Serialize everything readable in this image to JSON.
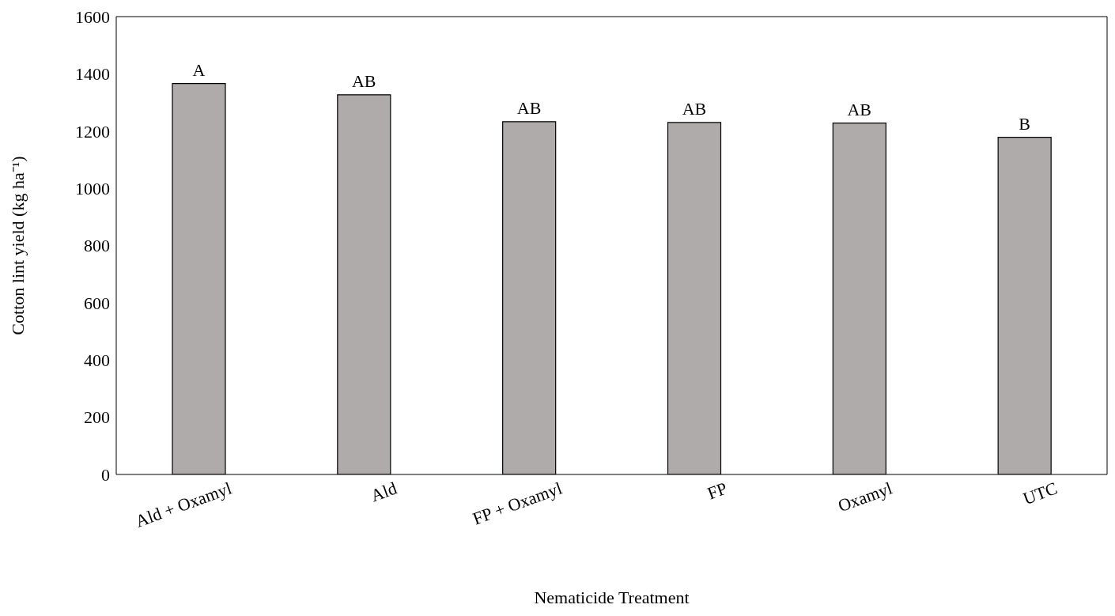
{
  "chart_data": {
    "type": "bar",
    "xlabel": "Nematicide Treatment",
    "ylabel": "Cotton lint yield (kg ha⁻¹)",
    "categories": [
      "Ald + Oxamyl",
      "Ald",
      "FP + Oxamyl",
      "FP",
      "Oxamyl",
      "UTC"
    ],
    "values": [
      1366,
      1327,
      1233,
      1230,
      1228,
      1178
    ],
    "color": "#afabab",
    "ylim": [
      0,
      1600
    ],
    "yticks": [
      0,
      200,
      400,
      600,
      800,
      1000,
      1200,
      1400,
      1600
    ],
    "grid": false,
    "legend": false,
    "annotations": [
      {
        "text": "A",
        "x": "Ald + Oxamyl",
        "y": 1366
      },
      {
        "text": "AB",
        "x": "Ald",
        "y": 1327
      },
      {
        "text": "AB",
        "x": "FP + Oxamyl",
        "y": 1233
      },
      {
        "text": "AB",
        "x": "FP",
        "y": 1230
      },
      {
        "text": "AB",
        "x": "Oxamyl",
        "y": 1228
      },
      {
        "text": "B",
        "x": "UTC",
        "y": 1178
      }
    ]
  }
}
